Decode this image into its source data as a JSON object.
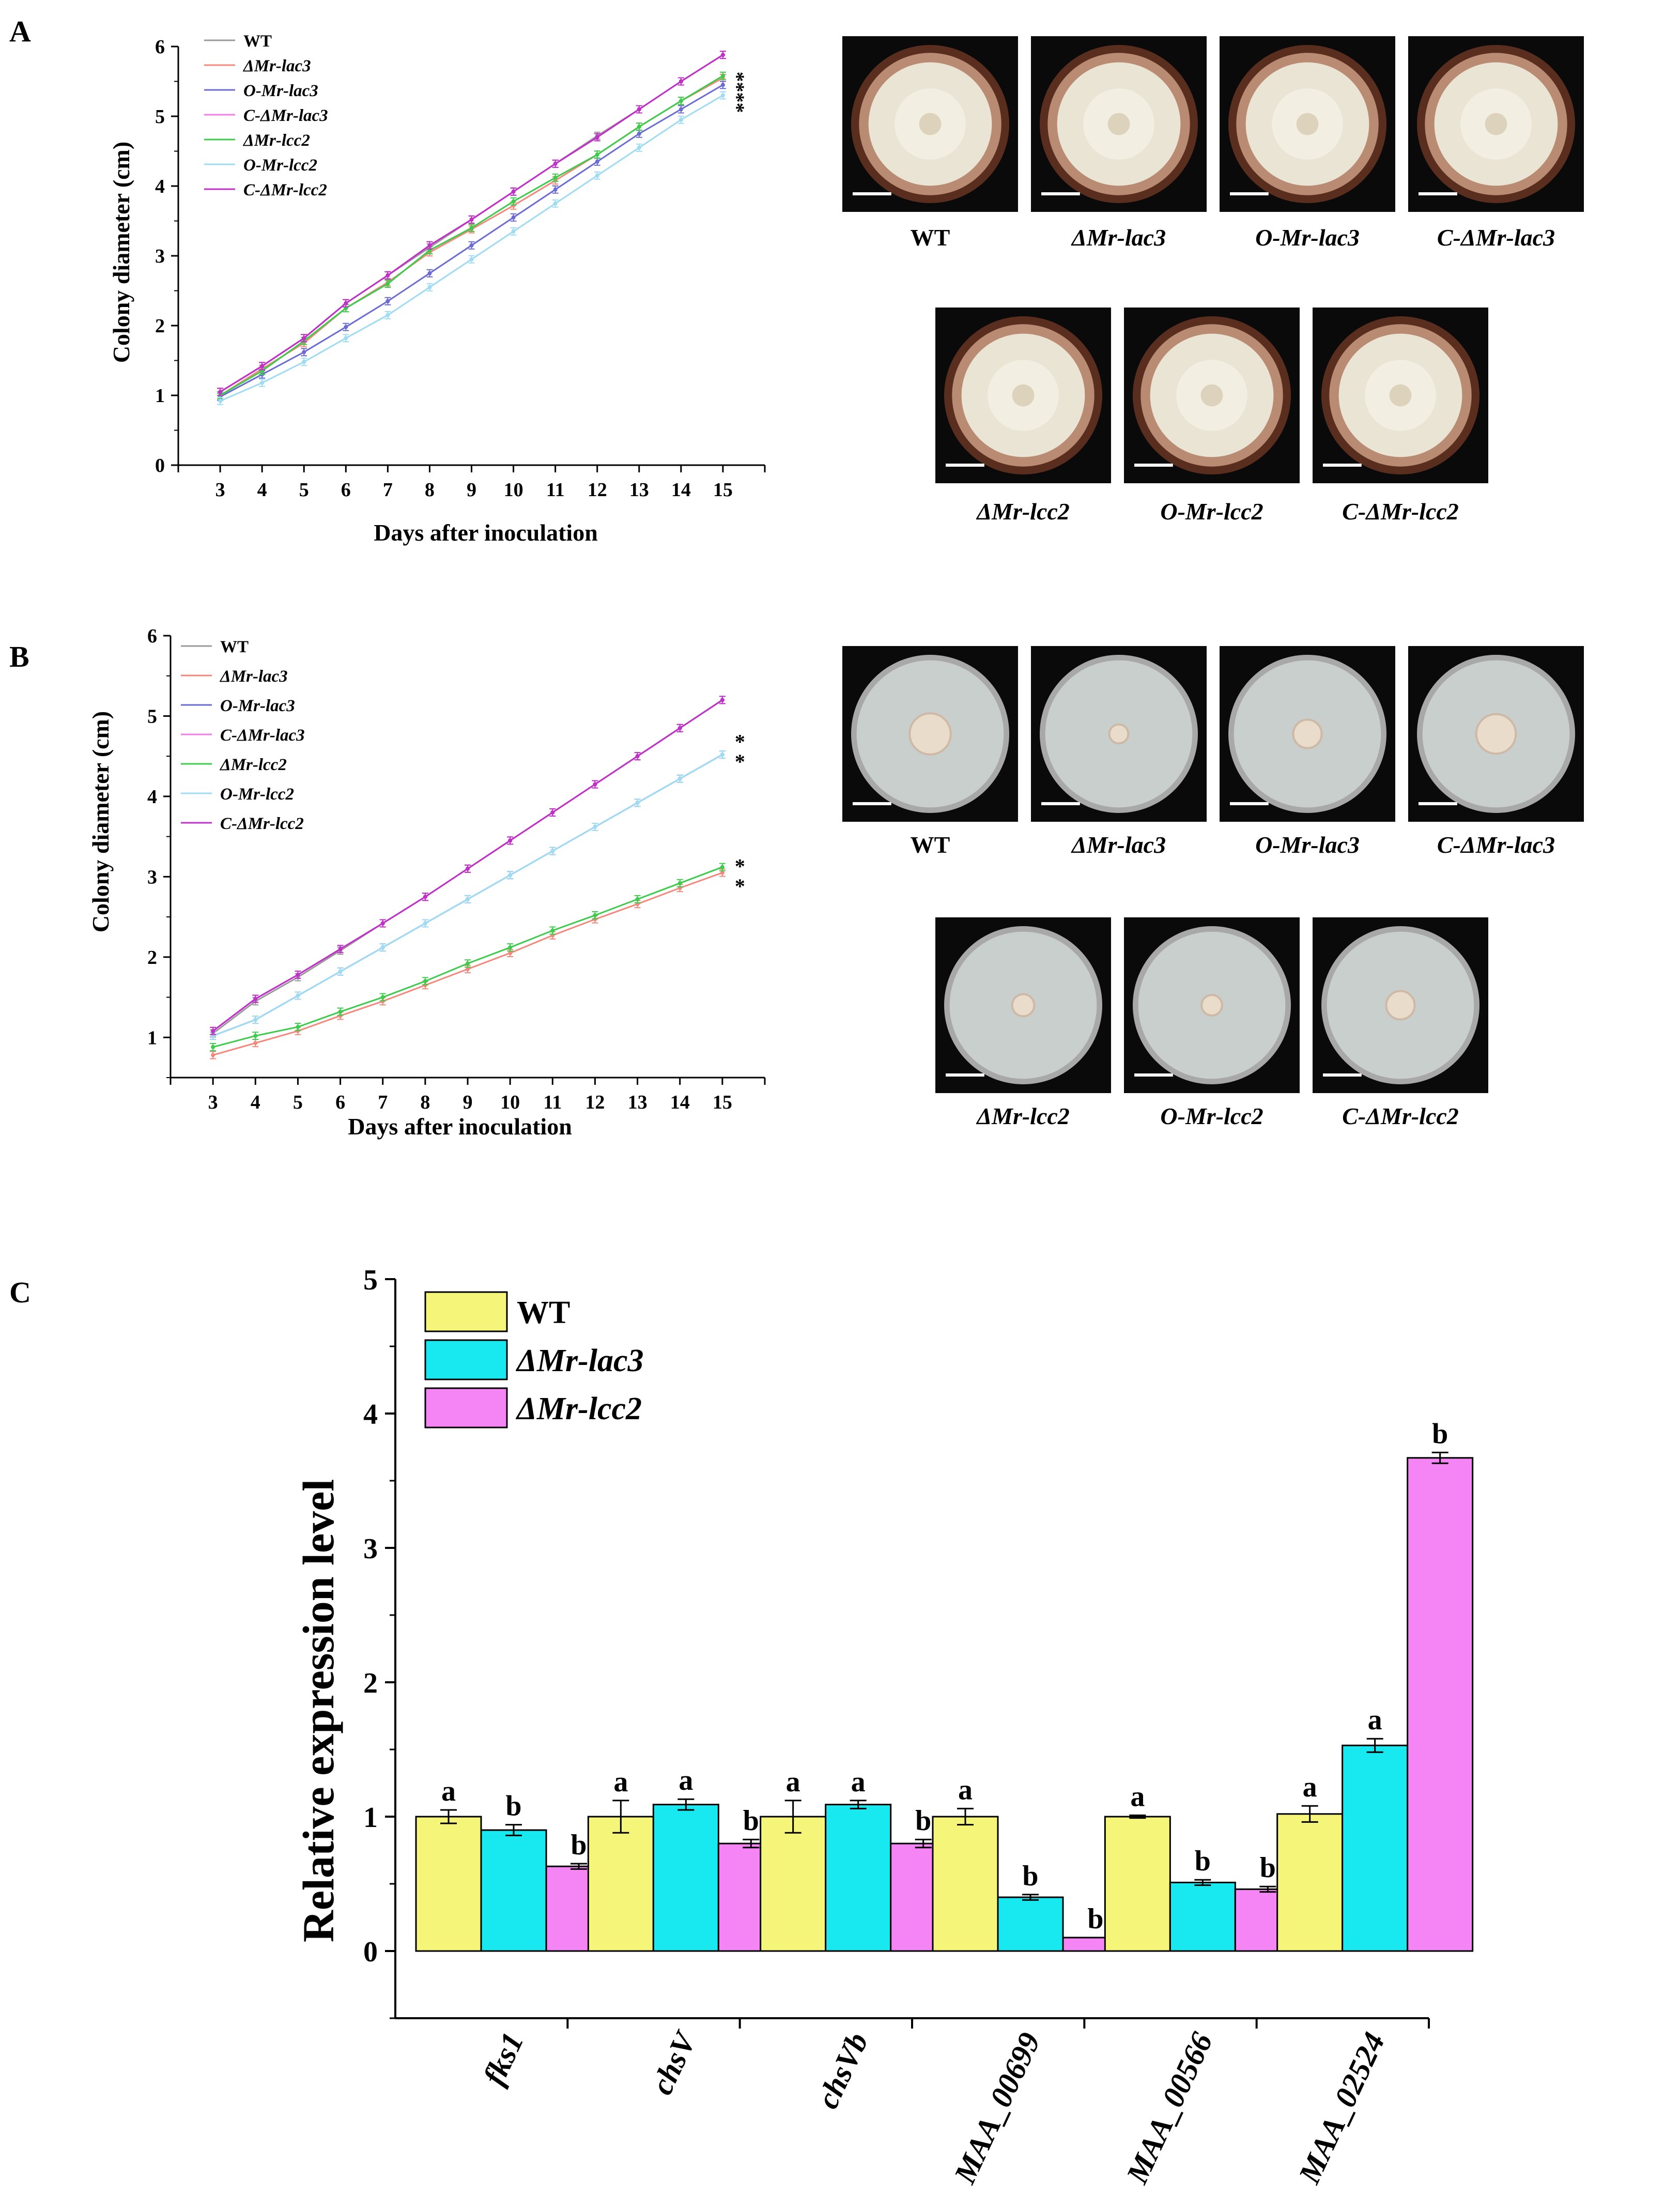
{
  "panel_labels": {
    "A": "A",
    "B": "B",
    "C": "C"
  },
  "photos_A": {
    "row1": [
      "WT",
      "ΔMr-lac3",
      "O-Mr-lac3",
      "C-ΔMr-lac3"
    ],
    "row2": [
      "ΔMr-lcc2",
      "O-Mr-lcc2",
      "C-ΔMr-lcc2"
    ],
    "row1_italic": [
      false,
      true,
      true,
      true
    ],
    "row2_italic": [
      true,
      true,
      true
    ]
  },
  "photos_B": {
    "row1": [
      "WT",
      "ΔMr-lac3",
      "O-Mr-lac3",
      "C-ΔMr-lac3"
    ],
    "row2": [
      "ΔMr-lcc2",
      "O-Mr-lcc2",
      "C-ΔMr-lcc2"
    ],
    "row1_italic": [
      false,
      true,
      true,
      true
    ],
    "row2_italic": [
      true,
      true,
      true
    ]
  },
  "chart_data": [
    {
      "id": "A",
      "type": "line",
      "xlabel": "Days after inoculation",
      "ylabel": "Colony diameter (cm)",
      "x": [
        3,
        4,
        5,
        6,
        7,
        8,
        9,
        10,
        11,
        12,
        13,
        14,
        15
      ],
      "xlim": [
        2,
        16
      ],
      "ylim": [
        0,
        6
      ],
      "yticks": [
        0,
        1,
        2,
        3,
        4,
        5,
        6
      ],
      "legend_position": "top-left",
      "significance": "****",
      "series": [
        {
          "name": "WT",
          "color": "#9a9a9a",
          "italic": false,
          "values": [
            1.05,
            1.42,
            1.82,
            2.32,
            2.72,
            3.12,
            3.52,
            3.92,
            4.32,
            4.72,
            5.1,
            5.5,
            5.88
          ]
        },
        {
          "name": "ΔMr-lac3",
          "color": "#f4877a",
          "italic": true,
          "values": [
            1.0,
            1.38,
            1.75,
            2.25,
            2.62,
            3.05,
            3.38,
            3.72,
            4.08,
            4.45,
            4.85,
            5.22,
            5.55
          ]
        },
        {
          "name": "O-Mr-lac3",
          "color": "#6b6bd6",
          "italic": true,
          "values": [
            0.98,
            1.3,
            1.62,
            1.98,
            2.35,
            2.75,
            3.15,
            3.55,
            3.95,
            4.35,
            4.75,
            5.1,
            5.45
          ]
        },
        {
          "name": "C-ΔMr-lac3",
          "color": "#f07ee8",
          "italic": true,
          "values": [
            1.05,
            1.42,
            1.82,
            2.32,
            2.72,
            3.15,
            3.52,
            3.92,
            4.32,
            4.7,
            5.1,
            5.5,
            5.88
          ]
        },
        {
          "name": "ΔMr-lcc2",
          "color": "#3ccc4c",
          "italic": true,
          "values": [
            1.0,
            1.35,
            1.78,
            2.25,
            2.6,
            3.08,
            3.4,
            3.78,
            4.12,
            4.45,
            4.85,
            5.22,
            5.58
          ]
        },
        {
          "name": "O-Mr-lcc2",
          "color": "#9fdcf4",
          "italic": true,
          "values": [
            0.92,
            1.18,
            1.48,
            1.82,
            2.15,
            2.55,
            2.95,
            3.35,
            3.75,
            4.15,
            4.55,
            4.95,
            5.3
          ]
        },
        {
          "name": "C-ΔMr-lcc2",
          "color": "#c030c8",
          "italic": true,
          "values": [
            1.05,
            1.42,
            1.82,
            2.32,
            2.72,
            3.15,
            3.52,
            3.92,
            4.32,
            4.7,
            5.1,
            5.5,
            5.88
          ]
        }
      ]
    },
    {
      "id": "B",
      "type": "line",
      "xlabel": "Days after inoculation",
      "ylabel": "Colony diameter (cm)",
      "x": [
        3,
        4,
        5,
        6,
        7,
        8,
        9,
        10,
        11,
        12,
        13,
        14,
        15
      ],
      "xlim": [
        2,
        16
      ],
      "ylim": [
        0.5,
        6
      ],
      "yticks": [
        1,
        2,
        3,
        4,
        5,
        6
      ],
      "legend_position": "top-left",
      "significance": [
        "*",
        "*",
        "*",
        "*"
      ],
      "series": [
        {
          "name": "WT",
          "color": "#9a9a9a",
          "italic": false,
          "values": [
            1.05,
            1.45,
            1.75,
            2.08,
            2.42,
            2.75,
            3.1,
            3.45,
            3.8,
            4.15,
            4.5,
            4.85,
            5.2
          ]
        },
        {
          "name": "ΔMr-lac3",
          "color": "#f4877a",
          "italic": true,
          "values": [
            0.78,
            0.93,
            1.08,
            1.27,
            1.45,
            1.65,
            1.85,
            2.05,
            2.27,
            2.47,
            2.66,
            2.86,
            3.05
          ]
        },
        {
          "name": "O-Mr-lac3",
          "color": "#6b6bd6",
          "italic": true,
          "values": [
            1.02,
            1.22,
            1.52,
            1.82,
            2.12,
            2.42,
            2.72,
            3.02,
            3.32,
            3.62,
            3.92,
            4.22,
            4.52
          ]
        },
        {
          "name": "C-ΔMr-lac3",
          "color": "#f07ee8",
          "italic": true,
          "values": [
            1.08,
            1.48,
            1.78,
            2.1,
            2.42,
            2.75,
            3.1,
            3.45,
            3.8,
            4.15,
            4.5,
            4.85,
            5.2
          ]
        },
        {
          "name": "ΔMr-lcc2",
          "color": "#3ccc4c",
          "italic": true,
          "values": [
            0.88,
            1.02,
            1.13,
            1.32,
            1.5,
            1.7,
            1.92,
            2.12,
            2.33,
            2.52,
            2.72,
            2.92,
            3.12
          ]
        },
        {
          "name": "O-Mr-lcc2",
          "color": "#9fdcf4",
          "italic": true,
          "values": [
            1.02,
            1.22,
            1.52,
            1.82,
            2.12,
            2.42,
            2.72,
            3.02,
            3.32,
            3.62,
            3.92,
            4.22,
            4.52
          ]
        },
        {
          "name": "C-ΔMr-lcc2",
          "color": "#c030c8",
          "italic": true,
          "values": [
            1.08,
            1.48,
            1.78,
            2.1,
            2.42,
            2.75,
            3.1,
            3.45,
            3.8,
            4.15,
            4.5,
            4.85,
            5.2
          ]
        }
      ]
    },
    {
      "id": "C",
      "type": "bar",
      "ylabel": "Relative expression level",
      "categories": [
        "fks1",
        "chsV",
        "chsVb",
        "MAA_00699",
        "MAA_00566",
        "MAA_02524"
      ],
      "ylim": [
        -0.5,
        5
      ],
      "yticks": [
        0,
        1,
        2,
        3,
        4,
        5
      ],
      "legend_position": "top-left",
      "series": [
        {
          "name": "WT",
          "color": "#f5f57a",
          "italic": false,
          "values": [
            1.0,
            1.0,
            1.0,
            1.0,
            1.0,
            1.02
          ],
          "errors": [
            0.05,
            0.12,
            0.12,
            0.06,
            0.01,
            0.06
          ],
          "letters": [
            "a",
            "a",
            "a",
            "a",
            "a",
            "a"
          ]
        },
        {
          "name": "ΔMr-lac3",
          "color": "#18e8f0",
          "italic": true,
          "values": [
            0.9,
            1.09,
            1.09,
            0.4,
            0.51,
            1.53
          ],
          "errors": [
            0.04,
            0.04,
            0.03,
            0.02,
            0.02,
            0.05
          ],
          "letters": [
            "b",
            "a",
            "a",
            "b",
            "b",
            "a"
          ]
        },
        {
          "name": "ΔMr-lcc2",
          "color": "#f584f5",
          "italic": true,
          "values": [
            0.63,
            0.8,
            0.8,
            0.1,
            0.46,
            3.67
          ],
          "errors": [
            0.02,
            0.03,
            0.03,
            0.0,
            0.02,
            0.04
          ],
          "letters": [
            "b",
            "b",
            "b",
            "b",
            "b",
            "b"
          ]
        }
      ]
    }
  ]
}
